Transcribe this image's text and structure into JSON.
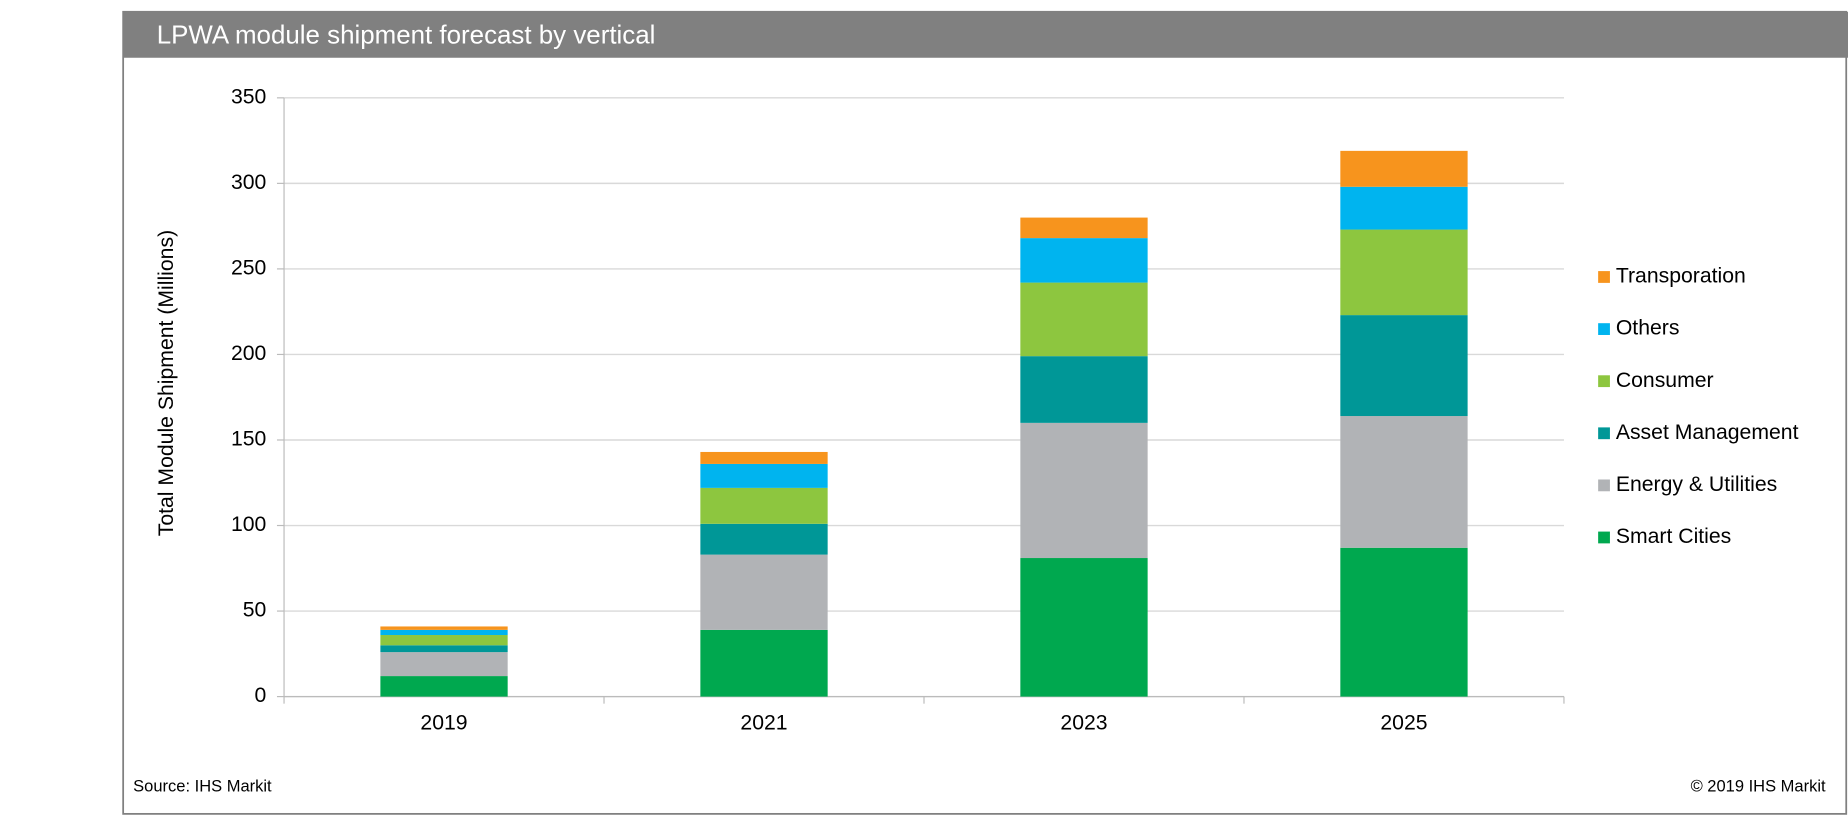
{
  "chart_data": {
    "type": "stacked_bar",
    "title": "LPWA module shipment forecast by vertical",
    "y_label": "Total Module Shipment (Millions)",
    "categories": [
      "2019",
      "2021",
      "2023",
      "2025"
    ],
    "series": [
      {
        "name": "Smart Cities",
        "color": "#00a84f",
        "values": [
          12,
          39,
          81,
          87
        ]
      },
      {
        "name": "Energy & Utilities",
        "color": "#b1b3b6",
        "values": [
          14,
          44,
          79,
          77
        ]
      },
      {
        "name": "Asset Management",
        "color": "#009797",
        "values": [
          4,
          18,
          39,
          59
        ]
      },
      {
        "name": "Consumer",
        "color": "#8dc63f",
        "values": [
          6,
          21,
          43,
          50
        ]
      },
      {
        "name": "Others",
        "color": "#00b4ef",
        "values": [
          3,
          14,
          26,
          25
        ]
      },
      {
        "name": "Transporation",
        "color": "#f7941d",
        "values": [
          2,
          7,
          12,
          21
        ]
      }
    ],
    "ylim": [
      0,
      350
    ],
    "yticks": [
      0,
      50,
      100,
      150,
      200,
      250,
      300,
      350
    ],
    "grid": true,
    "legend": "right",
    "source": "Source: IHS Markit",
    "copyright": "© 2019 IHS Markit"
  }
}
